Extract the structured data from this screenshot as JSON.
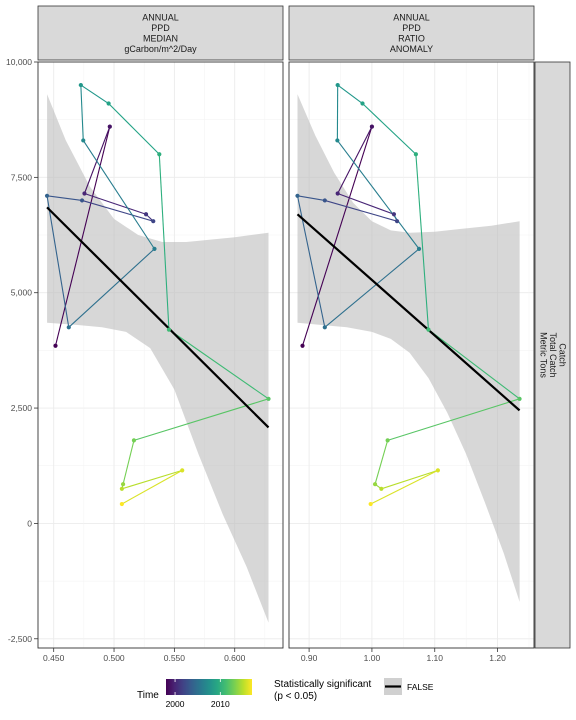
{
  "chart_data": {
    "type": "scatter",
    "y_axis": {
      "ylim": [
        -2700,
        10000
      ],
      "ticks": [
        -2500,
        0,
        2500,
        5000,
        7500,
        10000
      ],
      "tick_labels": [
        "-2,500",
        "0",
        "2,500",
        "5,000",
        "7,500",
        "10,000"
      ]
    },
    "row_strip": [
      "Catch",
      "Total Catch",
      "Metric Tons"
    ],
    "panels": [
      {
        "strip": [
          "ANNUAL",
          "PPD",
          "MEDIAN",
          "gCarbon/m^2/Day"
        ],
        "xlim": [
          0.437,
          0.64
        ],
        "xticks": [
          0.45,
          0.5,
          0.55,
          0.6
        ],
        "xtick_labels": [
          "0.450",
          "0.500",
          "0.550",
          "0.600"
        ],
        "points": [
          {
            "year": 1998,
            "x": 0.4515,
            "y": 3850
          },
          {
            "year": 1999,
            "x": 0.4965,
            "y": 8600
          },
          {
            "year": 2000,
            "x": 0.4755,
            "y": 7150
          },
          {
            "year": 2001,
            "x": 0.5265,
            "y": 6700
          },
          {
            "year": 2002,
            "x": 0.5325,
            "y": 6550
          },
          {
            "year": 2003,
            "x": 0.4735,
            "y": 7000
          },
          {
            "year": 2004,
            "x": 0.4445,
            "y": 7100
          },
          {
            "year": 2005,
            "x": 0.4625,
            "y": 4250
          },
          {
            "year": 2006,
            "x": 0.5335,
            "y": 5950
          },
          {
            "year": 2007,
            "x": 0.4745,
            "y": 8300
          },
          {
            "year": 2008,
            "x": 0.4725,
            "y": 9500
          },
          {
            "year": 2009,
            "x": 0.4955,
            "y": 9100
          },
          {
            "year": 2010,
            "x": 0.5375,
            "y": 8000
          },
          {
            "year": 2011,
            "x": 0.5455,
            "y": 4200
          },
          {
            "year": 2012,
            "x": 0.628,
            "y": 2700
          },
          {
            "year": 2013,
            "x": 0.5165,
            "y": 1800
          },
          {
            "year": 2014,
            "x": 0.5075,
            "y": 850
          },
          {
            "year": 2015,
            "x": 0.5065,
            "y": 750
          },
          {
            "year": 2016,
            "x": 0.5565,
            "y": 1150
          },
          {
            "year": 2017,
            "x": 0.5065,
            "y": 420
          }
        ],
        "fit": {
          "x1": 0.4445,
          "y1": 6850,
          "x2": 0.628,
          "y2": 2080
        },
        "band_upper": [
          [
            0.4445,
            9300
          ],
          [
            0.46,
            8300
          ],
          [
            0.48,
            7300
          ],
          [
            0.5,
            6600
          ],
          [
            0.52,
            6250
          ],
          [
            0.54,
            6100
          ],
          [
            0.56,
            6100
          ],
          [
            0.58,
            6150
          ],
          [
            0.6,
            6200
          ],
          [
            0.628,
            6300
          ]
        ],
        "band_lower": [
          [
            0.628,
            -2150
          ],
          [
            0.61,
            -950
          ],
          [
            0.59,
            200
          ],
          [
            0.57,
            1500
          ],
          [
            0.55,
            2900
          ],
          [
            0.53,
            3800
          ],
          [
            0.51,
            4150
          ],
          [
            0.49,
            4250
          ],
          [
            0.47,
            4300
          ],
          [
            0.4445,
            4350
          ]
        ]
      },
      {
        "strip": [
          "ANNUAL",
          "PPD",
          "RATIO",
          "ANOMALY"
        ],
        "xlim": [
          0.868,
          1.258
        ],
        "xticks": [
          0.9,
          1.0,
          1.1,
          1.2
        ],
        "xtick_labels": [
          "0.90",
          "1.00",
          "1.10",
          "1.20"
        ],
        "points": [
          {
            "year": 1998,
            "x": 0.8895,
            "y": 3850
          },
          {
            "year": 1999,
            "x": 1.0,
            "y": 8600
          },
          {
            "year": 2000,
            "x": 0.9455,
            "y": 7150
          },
          {
            "year": 2001,
            "x": 1.035,
            "y": 6700
          },
          {
            "year": 2002,
            "x": 1.04,
            "y": 6550
          },
          {
            "year": 2003,
            "x": 0.925,
            "y": 7000
          },
          {
            "year": 2004,
            "x": 0.8815,
            "y": 7100
          },
          {
            "year": 2005,
            "x": 0.925,
            "y": 4250
          },
          {
            "year": 2006,
            "x": 1.075,
            "y": 5950
          },
          {
            "year": 2007,
            "x": 0.945,
            "y": 8300
          },
          {
            "year": 2008,
            "x": 0.9455,
            "y": 9500
          },
          {
            "year": 2009,
            "x": 0.985,
            "y": 9100
          },
          {
            "year": 2010,
            "x": 1.07,
            "y": 8000
          },
          {
            "year": 2011,
            "x": 1.09,
            "y": 4200
          },
          {
            "year": 2012,
            "x": 1.235,
            "y": 2700
          },
          {
            "year": 2013,
            "x": 1.025,
            "y": 1800
          },
          {
            "year": 2014,
            "x": 1.005,
            "y": 850
          },
          {
            "year": 2015,
            "x": 1.015,
            "y": 750
          },
          {
            "year": 2016,
            "x": 1.105,
            "y": 1150
          },
          {
            "year": 2017,
            "x": 0.998,
            "y": 420
          }
        ],
        "fit": {
          "x1": 0.8815,
          "y1": 6700,
          "x2": 1.235,
          "y2": 2450
        },
        "band_upper": [
          [
            0.8815,
            9300
          ],
          [
            0.91,
            8400
          ],
          [
            0.94,
            7600
          ],
          [
            0.97,
            6950
          ],
          [
            1.0,
            6550
          ],
          [
            1.03,
            6350
          ],
          [
            1.06,
            6300
          ],
          [
            1.1,
            6320
          ],
          [
            1.14,
            6380
          ],
          [
            1.19,
            6450
          ],
          [
            1.235,
            6550
          ]
        ],
        "band_lower": [
          [
            1.235,
            -1700
          ],
          [
            1.21,
            -650
          ],
          [
            1.18,
            450
          ],
          [
            1.15,
            1500
          ],
          [
            1.12,
            2400
          ],
          [
            1.09,
            3150
          ],
          [
            1.06,
            3700
          ],
          [
            1.03,
            4000
          ],
          [
            1.0,
            4150
          ],
          [
            0.96,
            4250
          ],
          [
            0.92,
            4300
          ],
          [
            0.8815,
            4350
          ]
        ]
      }
    ],
    "legend": {
      "time_title": "Time",
      "time_range": [
        1998,
        2017
      ],
      "time_ticks": [
        2000,
        2010
      ],
      "time_tick_labels": [
        "2000",
        "2010"
      ],
      "sig_title_line1": "Statistically significant",
      "sig_title_line2": "(p < 0.05)",
      "sig_label": "FALSE"
    }
  }
}
